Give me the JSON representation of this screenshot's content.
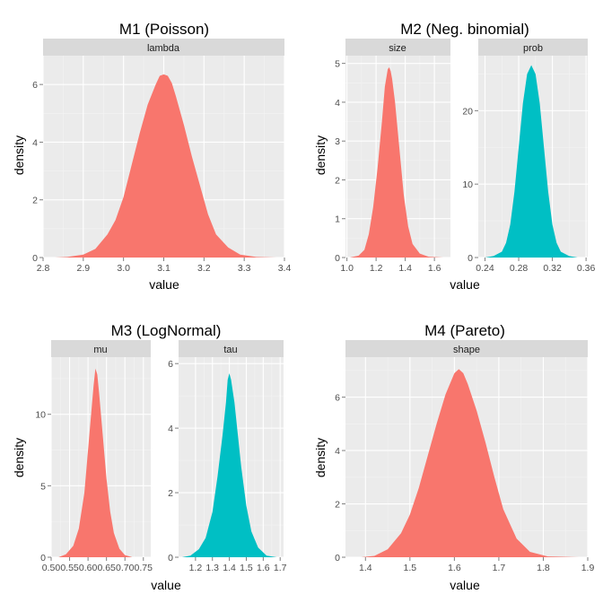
{
  "chart_data": [
    {
      "type": "area",
      "title": "M1 (Poisson)",
      "xlabel": "value",
      "ylabel": "density",
      "grid": true,
      "panels": [
        {
          "strip": "lambda",
          "color": "#F8766D",
          "xlim": [
            2.8,
            3.4
          ],
          "ylim": [
            0,
            7
          ],
          "xticks": [
            2.8,
            2.9,
            3.0,
            3.1,
            3.2,
            3.3,
            3.4
          ],
          "xticklabels": [
            "2.8",
            "2.9",
            "3.0",
            "3.1",
            "3.2",
            "3.3",
            "3.4"
          ],
          "yticks": [
            0,
            2,
            4,
            6
          ],
          "yticklabels": [
            "0",
            "2",
            "4",
            "6"
          ],
          "x": [
            2.83,
            2.86,
            2.9,
            2.93,
            2.96,
            2.98,
            3.0,
            3.02,
            3.04,
            3.06,
            3.08,
            3.09,
            3.1,
            3.11,
            3.12,
            3.13,
            3.15,
            3.17,
            3.19,
            3.21,
            3.23,
            3.26,
            3.29,
            3.33,
            3.38
          ],
          "y": [
            0.0,
            0.02,
            0.1,
            0.3,
            0.8,
            1.3,
            2.1,
            3.2,
            4.3,
            5.3,
            6.0,
            6.3,
            6.35,
            6.3,
            6.05,
            5.6,
            4.6,
            3.5,
            2.5,
            1.5,
            0.8,
            0.35,
            0.1,
            0.02,
            0.0
          ]
        }
      ]
    },
    {
      "type": "area",
      "title": "M2 (Neg. binomial)",
      "xlabel": "value",
      "ylabel": "density",
      "grid": true,
      "panels": [
        {
          "strip": "size",
          "color": "#F8766D",
          "xlim": [
            0.99,
            1.71
          ],
          "ylim": [
            0,
            5.2
          ],
          "xticks": [
            1.0,
            1.2,
            1.4,
            1.6
          ],
          "xticklabels": [
            "1.0",
            "1.2",
            "1.4",
            "1.6"
          ],
          "yticks": [
            0,
            1,
            2,
            3,
            4,
            5
          ],
          "yticklabels": [
            "0",
            "1",
            "2",
            "3",
            "4",
            "5"
          ],
          "x": [
            1.02,
            1.08,
            1.12,
            1.15,
            1.18,
            1.21,
            1.24,
            1.26,
            1.28,
            1.29,
            1.3,
            1.31,
            1.33,
            1.35,
            1.37,
            1.39,
            1.42,
            1.45,
            1.5,
            1.56,
            1.66
          ],
          "y": [
            0.0,
            0.05,
            0.2,
            0.6,
            1.3,
            2.3,
            3.5,
            4.4,
            4.85,
            4.9,
            4.8,
            4.6,
            4.0,
            3.2,
            2.4,
            1.6,
            0.8,
            0.35,
            0.1,
            0.02,
            0.0
          ]
        },
        {
          "strip": "prob",
          "color": "#00BFC4",
          "xlim": [
            0.232,
            0.362
          ],
          "ylim": [
            0,
            27.5
          ],
          "xticks": [
            0.24,
            0.28,
            0.32,
            0.36
          ],
          "xticklabels": [
            "0.24",
            "0.28",
            "0.32",
            "0.36"
          ],
          "yticks": [
            0,
            10,
            20
          ],
          "yticklabels": [
            "0",
            "10",
            "20"
          ],
          "x": [
            0.24,
            0.25,
            0.26,
            0.265,
            0.27,
            0.275,
            0.28,
            0.285,
            0.29,
            0.295,
            0.3,
            0.305,
            0.31,
            0.315,
            0.32,
            0.325,
            0.33,
            0.34,
            0.35
          ],
          "y": [
            0.0,
            0.2,
            0.8,
            2.0,
            4.5,
            9.0,
            15.0,
            21.0,
            25.0,
            26.2,
            25.0,
            21.0,
            15.0,
            9.0,
            4.5,
            2.0,
            0.8,
            0.2,
            0.0
          ]
        }
      ]
    },
    {
      "type": "area",
      "title": "M3 (LogNormal)",
      "xlabel": "value",
      "ylabel": "density",
      "grid": true,
      "panels": [
        {
          "strip": "mu",
          "color": "#F8766D",
          "xlim": [
            0.5,
            0.77
          ],
          "ylim": [
            0,
            14
          ],
          "xticks": [
            0.5,
            0.55,
            0.6,
            0.65,
            0.7,
            0.75
          ],
          "xticklabels": [
            "0.50",
            "0.55",
            "0.60",
            "0.65",
            "0.70",
            "0.75"
          ],
          "yticks": [
            0,
            5,
            10
          ],
          "yticklabels": [
            "0",
            "5",
            "10"
          ],
          "x": [
            0.52,
            0.54,
            0.56,
            0.575,
            0.59,
            0.6,
            0.61,
            0.615,
            0.62,
            0.625,
            0.63,
            0.64,
            0.65,
            0.66,
            0.67,
            0.685,
            0.7,
            0.72
          ],
          "y": [
            0.0,
            0.2,
            0.8,
            2.0,
            4.5,
            7.5,
            10.5,
            12.0,
            13.2,
            12.8,
            11.5,
            8.5,
            5.5,
            3.2,
            1.7,
            0.6,
            0.15,
            0.0
          ]
        },
        {
          "strip": "tau",
          "color": "#00BFC4",
          "xlim": [
            1.1,
            1.72
          ],
          "ylim": [
            0,
            6.2
          ],
          "xticks": [
            1.2,
            1.3,
            1.4,
            1.5,
            1.6,
            1.7
          ],
          "xticklabels": [
            "1.2",
            "1.3",
            "1.4",
            "1.5",
            "1.6",
            "1.7"
          ],
          "yticks": [
            0,
            2,
            4,
            6
          ],
          "yticklabels": [
            "0",
            "2",
            "4",
            "6"
          ],
          "x": [
            1.12,
            1.17,
            1.22,
            1.26,
            1.3,
            1.33,
            1.36,
            1.38,
            1.39,
            1.4,
            1.41,
            1.43,
            1.45,
            1.47,
            1.5,
            1.53,
            1.57,
            1.62,
            1.68
          ],
          "y": [
            0.0,
            0.05,
            0.25,
            0.6,
            1.4,
            2.5,
            3.8,
            4.8,
            5.5,
            5.7,
            5.5,
            4.8,
            3.8,
            2.8,
            1.6,
            0.8,
            0.3,
            0.05,
            0.0
          ]
        }
      ]
    },
    {
      "type": "area",
      "title": "M4 (Pareto)",
      "xlabel": "value",
      "ylabel": "density",
      "grid": true,
      "panels": [
        {
          "strip": "shape",
          "color": "#F8766D",
          "xlim": [
            1.355,
            1.9
          ],
          "ylim": [
            0,
            7.5
          ],
          "xticks": [
            1.4,
            1.5,
            1.6,
            1.7,
            1.8,
            1.9
          ],
          "xticklabels": [
            "1.4",
            "1.5",
            "1.6",
            "1.7",
            "1.8",
            "1.9"
          ],
          "yticks": [
            0,
            2,
            4,
            6
          ],
          "yticklabels": [
            "0",
            "2",
            "4",
            "6"
          ],
          "x": [
            1.39,
            1.42,
            1.45,
            1.48,
            1.5,
            1.52,
            1.54,
            1.56,
            1.58,
            1.6,
            1.61,
            1.62,
            1.63,
            1.65,
            1.67,
            1.69,
            1.71,
            1.74,
            1.77,
            1.81,
            1.88
          ],
          "y": [
            0.0,
            0.05,
            0.3,
            0.9,
            1.6,
            2.6,
            3.8,
            5.0,
            6.1,
            6.9,
            7.05,
            6.9,
            6.5,
            5.5,
            4.3,
            3.0,
            1.8,
            0.7,
            0.2,
            0.03,
            0.0
          ]
        }
      ]
    }
  ]
}
